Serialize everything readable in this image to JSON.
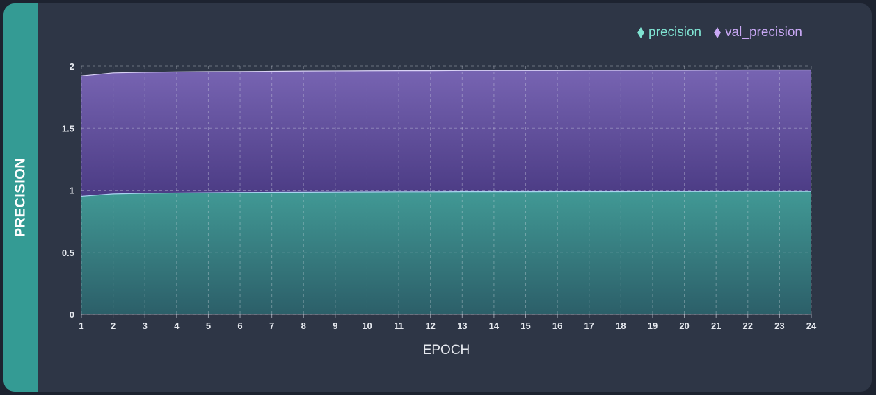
{
  "card": {
    "side_label": "PRECISION"
  },
  "legend": [
    {
      "label": "precision",
      "color": "#7fe3d2",
      "icon": "diamond-icon"
    },
    {
      "label": "val_precision",
      "color": "#c9a8f5",
      "icon": "diamond-icon"
    }
  ],
  "chart_data": {
    "type": "area",
    "stacked": true,
    "xlabel": "EPOCH",
    "ylabel": "PRECISION",
    "x": [
      1,
      2,
      3,
      4,
      5,
      6,
      7,
      8,
      9,
      10,
      11,
      12,
      13,
      14,
      15,
      16,
      17,
      18,
      19,
      20,
      21,
      22,
      23,
      24
    ],
    "ylim": [
      0,
      2
    ],
    "yticks": [
      0,
      0.5,
      1,
      1.5,
      2
    ],
    "ytick_labels": [
      "0",
      "0.5",
      "1",
      "1.5",
      "2"
    ],
    "grid": true,
    "legend_position": "top-right",
    "series": [
      {
        "name": "precision",
        "color": "#3d9590",
        "values": [
          0.95,
          0.97,
          0.975,
          0.978,
          0.98,
          0.982,
          0.983,
          0.984,
          0.985,
          0.986,
          0.987,
          0.987,
          0.988,
          0.988,
          0.988,
          0.989,
          0.989,
          0.989,
          0.99,
          0.99,
          0.99,
          0.991,
          0.991,
          0.991
        ]
      },
      {
        "name": "val_precision",
        "color": "#6a56a8",
        "values": [
          0.97,
          0.975,
          0.975,
          0.975,
          0.975,
          0.974,
          0.975,
          0.976,
          0.976,
          0.976,
          0.976,
          0.976,
          0.977,
          0.977,
          0.977,
          0.976,
          0.977,
          0.977,
          0.977,
          0.977,
          0.978,
          0.978,
          0.978,
          0.978
        ]
      }
    ]
  }
}
